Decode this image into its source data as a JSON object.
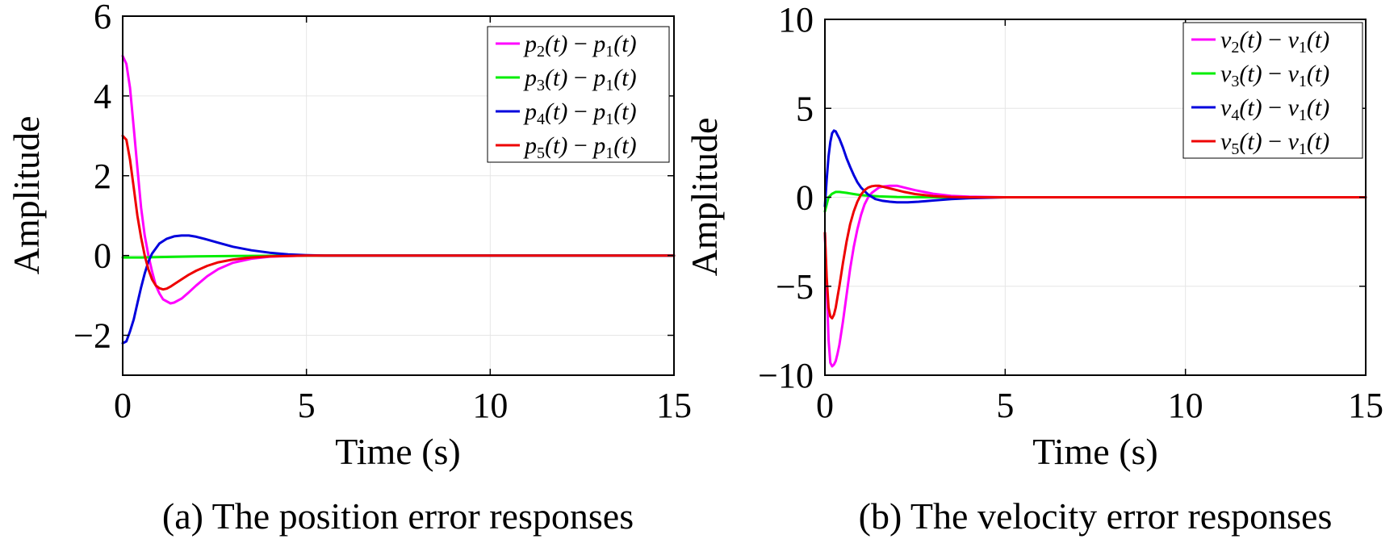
{
  "chart_data": [
    {
      "type": "line",
      "panel": "a",
      "caption": "(a) The position error responses",
      "xlabel": "Time (s)",
      "ylabel": "Amplitude",
      "xlim": [
        0,
        15
      ],
      "ylim": [
        -3,
        6
      ],
      "xticks": [
        0,
        5,
        10,
        15
      ],
      "xtick_labels": [
        "0",
        "5",
        "10",
        "15"
      ],
      "yticks": [
        -2,
        0,
        2,
        4,
        6
      ],
      "ytick_labels": [
        "−2",
        "0",
        "2",
        "4",
        "6"
      ],
      "grid": true,
      "legend_position": "top-right",
      "series": [
        {
          "name": "p2(t) − p1(t)",
          "legend": {
            "s": "p",
            "a": "2",
            "b": "p",
            "c": "1"
          },
          "color": "#ff00ff",
          "x": [
            0,
            0.1,
            0.2,
            0.3,
            0.4,
            0.5,
            0.6,
            0.7,
            0.8,
            0.9,
            1.0,
            1.1,
            1.2,
            1.3,
            1.4,
            1.6,
            1.8,
            2.0,
            2.3,
            2.6,
            3.0,
            3.5,
            4.0,
            4.5,
            5.0,
            5.5,
            6.0,
            7.0,
            10.0,
            15.0
          ],
          "y": [
            5.0,
            4.8,
            4.2,
            3.2,
            2.2,
            1.2,
            0.5,
            0.0,
            -0.4,
            -0.75,
            -0.95,
            -1.1,
            -1.15,
            -1.2,
            -1.18,
            -1.08,
            -0.92,
            -0.75,
            -0.52,
            -0.34,
            -0.18,
            -0.08,
            -0.03,
            -0.01,
            0.0,
            0.0,
            0.0,
            0.0,
            0.0,
            0.0
          ]
        },
        {
          "name": "p3(t) − p1(t)",
          "legend": {
            "s": "p",
            "a": "3",
            "b": "p",
            "c": "1"
          },
          "color": "#00ee00",
          "x": [
            0,
            0.5,
            1.0,
            2.0,
            3.0,
            5.0,
            10.0,
            15.0
          ],
          "y": [
            -0.05,
            -0.05,
            -0.04,
            -0.02,
            -0.01,
            0.0,
            0.0,
            0.0
          ]
        },
        {
          "name": "p4(t) − p1(t)",
          "legend": {
            "s": "p",
            "a": "4",
            "b": "p",
            "c": "1"
          },
          "color": "#0000dd",
          "x": [
            0,
            0.1,
            0.2,
            0.3,
            0.4,
            0.5,
            0.6,
            0.7,
            0.8,
            1.0,
            1.2,
            1.4,
            1.6,
            1.8,
            2.0,
            2.3,
            2.6,
            3.0,
            3.5,
            4.0,
            4.5,
            5.0,
            5.5,
            6.0,
            7.0,
            10.0,
            15.0
          ],
          "y": [
            -2.2,
            -2.15,
            -1.9,
            -1.6,
            -1.2,
            -0.8,
            -0.45,
            -0.15,
            0.05,
            0.3,
            0.42,
            0.48,
            0.5,
            0.5,
            0.47,
            0.4,
            0.32,
            0.22,
            0.13,
            0.07,
            0.03,
            0.01,
            0.0,
            0.0,
            0.0,
            0.0,
            0.0
          ]
        },
        {
          "name": "p5(t) − p1(t)",
          "legend": {
            "s": "p",
            "a": "5",
            "b": "p",
            "c": "1"
          },
          "color": "#ee0000",
          "x": [
            0,
            0.1,
            0.2,
            0.3,
            0.4,
            0.5,
            0.6,
            0.7,
            0.8,
            0.9,
            1.0,
            1.1,
            1.2,
            1.3,
            1.4,
            1.6,
            1.8,
            2.0,
            2.3,
            2.6,
            3.0,
            3.5,
            4.0,
            5.0,
            6.0,
            7.0,
            10.0,
            15.0
          ],
          "y": [
            3.0,
            2.9,
            2.4,
            1.7,
            1.0,
            0.45,
            0.0,
            -0.35,
            -0.6,
            -0.75,
            -0.82,
            -0.85,
            -0.83,
            -0.78,
            -0.72,
            -0.6,
            -0.48,
            -0.38,
            -0.26,
            -0.17,
            -0.1,
            -0.05,
            -0.02,
            0.0,
            0.0,
            0.0,
            0.0,
            0.0
          ]
        }
      ]
    },
    {
      "type": "line",
      "panel": "b",
      "caption": "(b) The velocity error responses",
      "xlabel": "Time (s)",
      "ylabel": "Amplitude",
      "xlim": [
        0,
        15
      ],
      "ylim": [
        -10,
        10
      ],
      "xticks": [
        0,
        5,
        10,
        15
      ],
      "xtick_labels": [
        "0",
        "5",
        "10",
        "15"
      ],
      "yticks": [
        -10,
        -5,
        0,
        5,
        10
      ],
      "ytick_labels": [
        "−10",
        "−5",
        "0",
        "5",
        "10"
      ],
      "grid": true,
      "legend_position": "top-right",
      "series": [
        {
          "name": "v2(t) − v1(t)",
          "legend": {
            "s": "v",
            "a": "2",
            "b": "v",
            "c": "1"
          },
          "color": "#ff00ff",
          "x": [
            0,
            0.05,
            0.1,
            0.15,
            0.2,
            0.25,
            0.3,
            0.35,
            0.4,
            0.5,
            0.6,
            0.7,
            0.8,
            0.9,
            1.0,
            1.1,
            1.2,
            1.3,
            1.4,
            1.5,
            1.6,
            1.8,
            2.0,
            2.2,
            2.5,
            3.0,
            3.5,
            4.0,
            5.0,
            6.0,
            10.0,
            15.0
          ],
          "y": [
            -2.0,
            -5.0,
            -8.0,
            -9.3,
            -9.5,
            -9.4,
            -9.2,
            -8.8,
            -8.3,
            -7.0,
            -5.5,
            -4.0,
            -2.8,
            -1.8,
            -1.0,
            -0.4,
            0.0,
            0.25,
            0.4,
            0.55,
            0.6,
            0.65,
            0.65,
            0.55,
            0.4,
            0.2,
            0.08,
            0.03,
            0.0,
            0.0,
            0.0,
            0.0
          ]
        },
        {
          "name": "v3(t) − v1(t)",
          "legend": {
            "s": "v",
            "a": "3",
            "b": "v",
            "c": "1"
          },
          "color": "#00ee00",
          "x": [
            0,
            0.1,
            0.2,
            0.3,
            0.4,
            0.6,
            0.8,
            1.0,
            1.5,
            2.0,
            3.0,
            5.0,
            15.0
          ],
          "y": [
            -0.8,
            0.0,
            0.2,
            0.3,
            0.3,
            0.25,
            0.18,
            0.12,
            0.05,
            0.02,
            0.0,
            0.0,
            0.0
          ]
        },
        {
          "name": "v4(t) − v1(t)",
          "legend": {
            "s": "v",
            "a": "4",
            "b": "v",
            "c": "1"
          },
          "color": "#0000dd",
          "x": [
            0,
            0.05,
            0.1,
            0.15,
            0.2,
            0.25,
            0.3,
            0.35,
            0.4,
            0.5,
            0.6,
            0.7,
            0.8,
            0.9,
            1.0,
            1.2,
            1.4,
            1.6,
            1.8,
            2.0,
            2.3,
            2.6,
            3.0,
            3.5,
            4.0,
            5.0,
            6.0,
            10.0,
            15.0
          ],
          "y": [
            -0.5,
            1.0,
            2.3,
            3.1,
            3.6,
            3.75,
            3.7,
            3.5,
            3.3,
            2.8,
            2.2,
            1.7,
            1.25,
            0.85,
            0.55,
            0.15,
            -0.1,
            -0.2,
            -0.25,
            -0.28,
            -0.28,
            -0.25,
            -0.18,
            -0.1,
            -0.05,
            0.0,
            0.0,
            0.0,
            0.0
          ]
        },
        {
          "name": "v5(t) − v1(t)",
          "legend": {
            "s": "v",
            "a": "5",
            "b": "v",
            "c": "1"
          },
          "color": "#ee0000",
          "x": [
            0,
            0.05,
            0.1,
            0.15,
            0.2,
            0.25,
            0.3,
            0.35,
            0.4,
            0.5,
            0.6,
            0.7,
            0.8,
            0.9,
            1.0,
            1.1,
            1.2,
            1.3,
            1.4,
            1.5,
            1.6,
            1.8,
            2.0,
            2.2,
            2.5,
            3.0,
            3.5,
            4.0,
            5.0,
            6.0,
            10.0,
            15.0
          ],
          "y": [
            -2.0,
            -4.5,
            -6.2,
            -6.7,
            -6.8,
            -6.6,
            -6.2,
            -5.6,
            -5.0,
            -3.7,
            -2.5,
            -1.5,
            -0.8,
            -0.25,
            0.15,
            0.4,
            0.55,
            0.62,
            0.65,
            0.65,
            0.6,
            0.5,
            0.4,
            0.3,
            0.18,
            0.07,
            0.02,
            0.0,
            0.0,
            0.0,
            0.0,
            0.0
          ]
        }
      ]
    }
  ]
}
